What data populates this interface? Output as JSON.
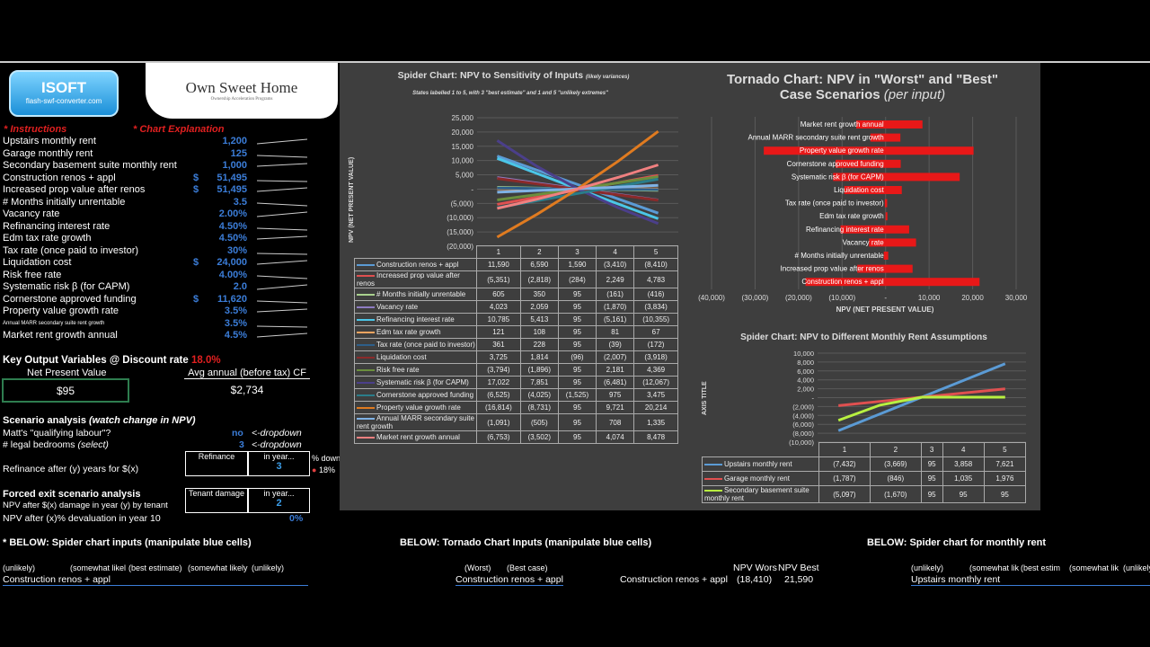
{
  "header": {
    "logo_text": "ISOFT",
    "logo_sub": "flash-swf-converter.com",
    "brand": "Own Sweet Home",
    "brand_sub": "Ownership Acceleration Programs"
  },
  "links": {
    "instructions": "* Instructions",
    "chart_explanation": "* Chart Explanation"
  },
  "inputs": [
    {
      "label": "Upstairs monthly rent",
      "currency": "",
      "value": "1,200"
    },
    {
      "label": "Garage monthly rent",
      "currency": "",
      "value": "125"
    },
    {
      "label": "Secondary basement suite monthly rent",
      "currency": "",
      "value": "1,000"
    },
    {
      "label": "Construction renos + appl",
      "currency": "$",
      "value": "51,495"
    },
    {
      "label": "Increased prop value after renos",
      "currency": "$",
      "value": "51,495"
    },
    {
      "label": "# Months initially unrentable",
      "currency": "",
      "value": "3.5"
    },
    {
      "label": "Vacancy rate",
      "currency": "",
      "value": "2.00%"
    },
    {
      "label": "Refinancing interest rate",
      "currency": "",
      "value": "4.50%"
    },
    {
      "label": "Edm tax rate growth",
      "currency": "",
      "value": "4.50%"
    },
    {
      "label": "Tax rate (once paid to investor)",
      "currency": "",
      "value": "30%"
    },
    {
      "label": "Liquidation cost",
      "currency": "$",
      "value": "24,000"
    },
    {
      "label": "Risk free rate",
      "currency": "",
      "value": "4.00%"
    },
    {
      "label": "Systematic risk  β (for CAPM)",
      "currency": "",
      "value": "2.0"
    },
    {
      "label": "Cornerstone approved funding",
      "currency": "$",
      "value": "11,620"
    },
    {
      "label": "Property value growth rate",
      "currency": "",
      "value": "3.5%"
    },
    {
      "label": "Annual MARR secondary suite rent growth",
      "currency": "",
      "value": "3.5%"
    },
    {
      "label": "Market rent growth annual",
      "currency": "",
      "value": "4.5%"
    }
  ],
  "outputs": {
    "title": "Key Output Variables @ Discount rate",
    "discount_rate": "18.0%",
    "npv_label": "Net Present Value",
    "npv_value": "$95",
    "cf_label": "Avg annual (before tax) CF",
    "cf_value": "$2,734"
  },
  "scenario": {
    "title": "Scenario analysis",
    "title_em": "(watch change in NPV)",
    "labour_label": "Matt's \"qualifying labour\"?",
    "labour_value": "no",
    "dropdown_hint": "<-dropdown",
    "bedrooms_label": "# legal bedrooms",
    "bedrooms_em": "(select)",
    "bedrooms_value": "3",
    "refi_label": "Refinance after (y) years for $(x)",
    "refi_box": "Refinance",
    "in_year": "in year...",
    "refi_year": "3",
    "pct_down_label": "% down",
    "pct_down": "18%"
  },
  "forced_exit": {
    "title": "Forced exit scenario analysis",
    "damage_label": "NPV after $(x) damage in year (y) by tenant",
    "damage_box": "Tenant damage",
    "in_year": "in year...",
    "damage_year": "2",
    "deval_label": "NPV after (x)% devaluation in year 10",
    "deval_value": "0%"
  },
  "bottom": {
    "spider_inputs_title": "* BELOW: Spider chart inputs (manipulate blue cells)",
    "spider_cols": [
      "(unlikely)",
      "(somewhat likel",
      "(best estimate)",
      "(somewhat likely",
      "(unlikely)"
    ],
    "spider_first_row": "Construction renos + appl",
    "tornado_title": "BELOW: Tornado Chart Inputs (manipulate blue cells)",
    "tornado_cols": [
      "(Worst)",
      "(Best case)"
    ],
    "tornado_first_row": "Construction renos + appl",
    "npv_worst_label": "NPV Wors",
    "npv_best_label": "NPV Best",
    "npv_row_label": "Construction renos + appl",
    "npv_worst": "(18,410)",
    "npv_best": "21,590",
    "rent_title": "BELOW: Spider chart for monthly rent",
    "rent_cols": [
      "(unlikely)",
      "(somewhat lik",
      "(best estim",
      "(somewhat lik",
      "(unlikely)"
    ],
    "rent_first_row": "Upstairs monthly rent"
  },
  "chart_data": [
    {
      "type": "line",
      "title": "Spider Chart: NPV to Sensitivity of Inputs",
      "title_small": "(likely variances)",
      "subtitle": "States labelled 1 to 5, with 3 \"best estimate\" and 1 and 5 \"unlikely extremes\"",
      "ylabel": "NPV (NET PRESENT VALUE)",
      "ylim": [
        -20000,
        25000
      ],
      "yticks": [
        "25,000",
        "20,000",
        "15,000",
        "10,000",
        "5,000",
        "-",
        "(5,000)",
        "(10,000)",
        "(15,000)",
        "(20,000)"
      ],
      "categories": [
        "1",
        "2",
        "3",
        "4",
        "5"
      ],
      "series": [
        {
          "name": "Construction renos + appl",
          "color": "#5b9bd5",
          "values": [
            11590,
            6590,
            1590,
            -3410,
            -8410
          ],
          "labels": [
            "11,590",
            "6,590",
            "1,590",
            "(3,410)",
            "(8,410)"
          ]
        },
        {
          "name": "Increased prop value after renos",
          "color": "#e05050",
          "values": [
            -5351,
            -2818,
            -284,
            2249,
            4783
          ],
          "labels": [
            "(5,351)",
            "(2,818)",
            "(284)",
            "2,249",
            "4,783"
          ]
        },
        {
          "name": "# Months initially unrentable",
          "color": "#a9d18e",
          "values": [
            605,
            350,
            95,
            -161,
            -416
          ],
          "labels": [
            "605",
            "350",
            "95",
            "(161)",
            "(416)"
          ]
        },
        {
          "name": "Vacancy rate",
          "color": "#8e7cc3",
          "values": [
            4023,
            2059,
            95,
            -1870,
            -3834
          ],
          "labels": [
            "4,023",
            "2,059",
            "95",
            "(1,870)",
            "(3,834)"
          ]
        },
        {
          "name": "Refinancing interest rate",
          "color": "#4bc6e8",
          "values": [
            10785,
            5413,
            95,
            -5161,
            -10355
          ],
          "labels": [
            "10,785",
            "5,413",
            "95",
            "(5,161)",
            "(10,355)"
          ]
        },
        {
          "name": "Edm tax rate growth",
          "color": "#f4a460",
          "values": [
            121,
            108,
            95,
            81,
            67
          ],
          "labels": [
            "121",
            "108",
            "95",
            "81",
            "67"
          ]
        },
        {
          "name": "Tax rate (once paid to investor)",
          "color": "#2e5f8a",
          "values": [
            361,
            228,
            95,
            -39,
            -172
          ],
          "labels": [
            "361",
            "228",
            "95",
            "(39)",
            "(172)"
          ]
        },
        {
          "name": "Liquidation cost",
          "color": "#8b2a2a",
          "values": [
            3725,
            1814,
            -96,
            -2007,
            -3918
          ],
          "labels": [
            "3,725",
            "1,814",
            "(96)",
            "(2,007)",
            "(3,918)"
          ]
        },
        {
          "name": "Risk free rate",
          "color": "#6b8e3e",
          "values": [
            -3794,
            -1896,
            95,
            2181,
            4369
          ],
          "labels": [
            "(3,794)",
            "(1,896)",
            "95",
            "2,181",
            "4,369"
          ]
        },
        {
          "name": "Systematic risk  β (for CAPM)",
          "color": "#4b3f8a",
          "values": [
            17022,
            7851,
            95,
            -6481,
            -12067
          ],
          "labels": [
            "17,022",
            "7,851",
            "95",
            "(6,481)",
            "(12,067)"
          ]
        },
        {
          "name": "Cornerstone approved funding",
          "color": "#2a7d8a",
          "values": [
            -6525,
            -4025,
            -1525,
            975,
            3475
          ],
          "labels": [
            "(6,525)",
            "(4,025)",
            "(1,525)",
            "975",
            "3,475"
          ]
        },
        {
          "name": "Property value growth rate",
          "color": "#e07b20",
          "values": [
            -16814,
            -8731,
            95,
            9721,
            20214
          ],
          "labels": [
            "(16,814)",
            "(8,731)",
            "95",
            "9,721",
            "20,214"
          ]
        },
        {
          "name": "Annual MARR secondary suite rent growth",
          "color": "#7fb2e5",
          "values": [
            -1091,
            -505,
            95,
            708,
            1335
          ],
          "labels": [
            "(1,091)",
            "(505)",
            "95",
            "708",
            "1,335"
          ]
        },
        {
          "name": "Market rent growth annual",
          "color": "#f08080",
          "values": [
            -6753,
            -3502,
            95,
            4074,
            8478
          ],
          "labels": [
            "(6,753)",
            "(3,502)",
            "95",
            "4,074",
            "8,478"
          ]
        }
      ]
    },
    {
      "type": "bar",
      "orientation": "horizontal",
      "title": "Tornado Chart: NPV in \"Worst\" and \"Best\" Case Scenarios",
      "title_em": "(per input)",
      "xlabel": "NPV (NET PRESENT VALUE)",
      "xlim": [
        -40000,
        30000
      ],
      "xticks": [
        "(40,000)",
        "(30,000)",
        "(20,000)",
        "(10,000)",
        "-",
        "10,000",
        "20,000",
        "30,000"
      ],
      "bar_color": "#e81818",
      "categories": [
        "Market rent growth annual",
        "Annual MARR secondary suite rent growth",
        "Property value growth rate",
        "Cornerstone approved funding",
        "Systematic risk  β (for CAPM)",
        "Liquidation cost",
        "Tax rate (once paid to investor)",
        "Edm tax rate growth",
        "Refinancing interest rate",
        "Vacancy rate",
        "# Months initially unrentable",
        "Increased prop value after renos",
        "Construction renos + appl"
      ],
      "worst": [
        -6753,
        -3500,
        -28000,
        -11500,
        -12067,
        -9500,
        -172,
        67,
        -10355,
        -3834,
        -416,
        -6500,
        -18410
      ],
      "best": [
        8478,
        3400,
        20214,
        3475,
        17022,
        3725,
        361,
        121,
        5413,
        7000,
        605,
        6200,
        21590
      ]
    },
    {
      "type": "line",
      "title": "Spider Chart: NPV to Different Monthly Rent Assumptions",
      "ylabel": "AXIS TITLE",
      "ylim": [
        -10000,
        10000
      ],
      "yticks": [
        "10,000",
        "8,000",
        "6,000",
        "4,000",
        "2,000",
        "-",
        "(2,000)",
        "(4,000)",
        "(6,000)",
        "(8,000)",
        "(10,000)"
      ],
      "categories": [
        "1",
        "2",
        "3",
        "4",
        "5"
      ],
      "series": [
        {
          "name": "Upstairs monthly rent",
          "color": "#5b9bd5",
          "values": [
            -7432,
            -3669,
            95,
            3858,
            7621
          ],
          "labels": [
            "(7,432)",
            "(3,669)",
            "95",
            "3,858",
            "7,621"
          ]
        },
        {
          "name": "Garage monthly rent",
          "color": "#e05050",
          "values": [
            -1787,
            -846,
            95,
            1035,
            1976
          ],
          "labels": [
            "(1,787)",
            "(846)",
            "95",
            "1,035",
            "1,976"
          ]
        },
        {
          "name": "Secondary basement suite monthly rent",
          "color": "#b8f040",
          "values": [
            -5097,
            -1670,
            95,
            95,
            95
          ],
          "labels": [
            "(5,097)",
            "(1,670)",
            "95",
            "95",
            "95"
          ]
        }
      ]
    }
  ]
}
